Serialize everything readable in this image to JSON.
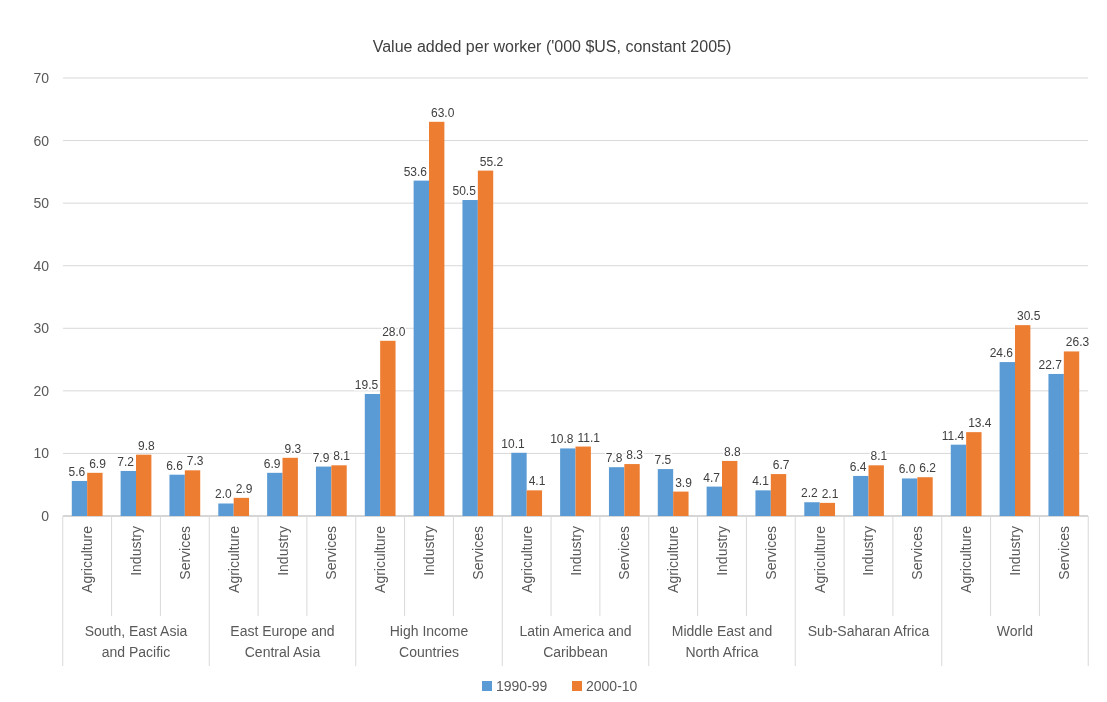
{
  "chart_data": {
    "type": "bar",
    "title": "Value added per worker ('000 $US, constant 2005)",
    "categories": [
      "Agriculture",
      "Industry",
      "Services",
      "Agriculture",
      "Industry",
      "Services",
      "Agriculture",
      "Industry",
      "Services",
      "Agriculture",
      "Industry",
      "Services",
      "Agriculture",
      "Industry",
      "Services",
      "Agriculture",
      "Industry",
      "Services",
      "Agriculture",
      "Industry",
      "Services"
    ],
    "annotations": [
      "South, East Asia and Pacific",
      "East Europe and Central Asia",
      "High Income Countries",
      "Latin America and Caribbean",
      "Middle East and North Africa",
      "Sub-Saharan Africa",
      "World"
    ],
    "series": [
      {
        "name": "1990-99",
        "color": "#5b9bd5",
        "values": [
          5.6,
          7.2,
          6.6,
          2.0,
          6.9,
          7.9,
          19.5,
          53.6,
          50.5,
          10.1,
          10.8,
          7.8,
          7.5,
          4.7,
          4.1,
          2.2,
          6.4,
          6.0,
          11.4,
          24.6,
          22.7
        ],
        "value_labels": [
          "5.6",
          "7.2",
          "6.6",
          "2.0",
          "6.9",
          "7.9",
          "19.5",
          "53.6",
          "50.5",
          "10.1",
          "10.8",
          "7.8",
          "7.5",
          "4.7",
          "4.1",
          "2.2",
          "6.4",
          "6.0",
          "11.4",
          "24.6",
          "22.7"
        ]
      },
      {
        "name": "2000-10",
        "color": "#ed7d31",
        "values": [
          6.9,
          9.8,
          7.3,
          2.9,
          9.3,
          8.1,
          28.0,
          63.0,
          55.2,
          4.1,
          11.1,
          8.3,
          3.9,
          8.8,
          6.7,
          2.1,
          8.1,
          6.2,
          13.4,
          30.5,
          26.3
        ],
        "value_labels": [
          "6.9",
          "9.8",
          "7.3",
          "2.9",
          "9.3",
          "8.1",
          "28.0",
          "63.0",
          "55.2",
          "4.1",
          "11.1",
          "8.3",
          "3.9",
          "8.8",
          "6.7",
          "2.1",
          "8.1",
          "6.2",
          "13.4",
          "30.5",
          "26.3"
        ]
      }
    ],
    "ylim": [
      0,
      70
    ],
    "yticks": [
      0,
      10,
      20,
      30,
      40,
      50,
      60,
      70
    ],
    "grid": "y",
    "legend": "bottom"
  }
}
